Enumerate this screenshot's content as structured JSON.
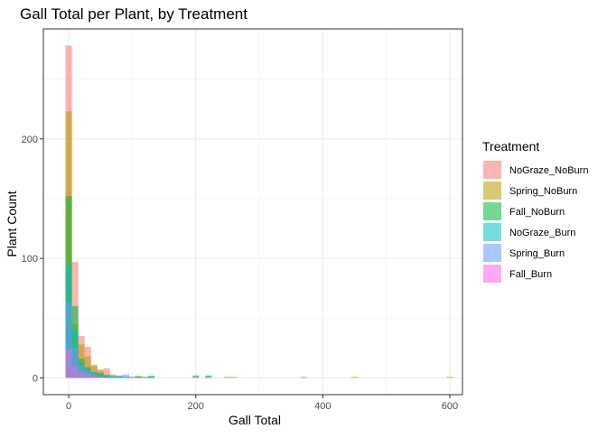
{
  "chart_data": {
    "type": "bar",
    "subtype": "overlapping histogram",
    "title": "Gall Total per Plant, by Treatment",
    "xlabel": "Gall Total",
    "ylabel": "Plant Count",
    "xlim": [
      -40,
      620
    ],
    "ylim": [
      -14,
      292
    ],
    "x_ticks": [
      0,
      200,
      400,
      600
    ],
    "y_ticks": [
      0,
      100,
      200
    ],
    "bin_width": 10,
    "grid": true,
    "legend": {
      "title": "Treatment",
      "placement": "right"
    },
    "series": [
      {
        "name": "NoGraze_NoBurn",
        "color": "#F8766D",
        "bins": [
          [
            0,
            278
          ],
          [
            10,
            97
          ],
          [
            20,
            35
          ],
          [
            30,
            26
          ],
          [
            40,
            10
          ],
          [
            50,
            7
          ],
          [
            60,
            8
          ],
          [
            70,
            3
          ],
          [
            80,
            2
          ],
          [
            90,
            1
          ],
          [
            100,
            1
          ],
          [
            110,
            2
          ],
          [
            120,
            1
          ],
          [
            130,
            1
          ],
          [
            200,
            2
          ],
          [
            220,
            2
          ],
          [
            250,
            1
          ]
        ]
      },
      {
        "name": "Spring_NoBurn",
        "color": "#B79F00",
        "bins": [
          [
            0,
            223
          ],
          [
            10,
            45
          ],
          [
            20,
            28
          ],
          [
            30,
            18
          ],
          [
            40,
            11
          ],
          [
            50,
            6
          ],
          [
            60,
            3
          ],
          [
            70,
            1
          ],
          [
            80,
            1
          ],
          [
            90,
            1
          ],
          [
            110,
            1
          ],
          [
            260,
            1
          ],
          [
            370,
            1
          ],
          [
            450,
            1
          ],
          [
            600,
            1
          ]
        ]
      },
      {
        "name": "Fall_NoBurn",
        "color": "#00BA38",
        "bins": [
          [
            0,
            152
          ],
          [
            10,
            60
          ],
          [
            20,
            16
          ],
          [
            30,
            9
          ],
          [
            40,
            5
          ],
          [
            50,
            4
          ],
          [
            60,
            2
          ],
          [
            70,
            1
          ],
          [
            80,
            1
          ],
          [
            110,
            1
          ],
          [
            130,
            1
          ]
        ]
      },
      {
        "name": "NoGraze_Burn",
        "color": "#00BFC4",
        "bins": [
          [
            0,
            95
          ],
          [
            10,
            40
          ],
          [
            20,
            13
          ],
          [
            30,
            8
          ],
          [
            40,
            4
          ],
          [
            50,
            3
          ],
          [
            60,
            2
          ],
          [
            70,
            2
          ],
          [
            80,
            2
          ],
          [
            90,
            1
          ],
          [
            100,
            1
          ],
          [
            120,
            1
          ],
          [
            130,
            2
          ],
          [
            200,
            2
          ],
          [
            220,
            2
          ]
        ]
      },
      {
        "name": "Spring_Burn",
        "color": "#619CFF",
        "bins": [
          [
            0,
            63
          ],
          [
            10,
            25
          ],
          [
            20,
            10
          ],
          [
            30,
            6
          ],
          [
            40,
            4
          ],
          [
            50,
            2
          ],
          [
            60,
            1
          ],
          [
            70,
            1
          ],
          [
            80,
            1
          ],
          [
            90,
            3
          ]
        ]
      },
      {
        "name": "Fall_Burn",
        "color": "#F564E3",
        "bins": [
          [
            0,
            24
          ],
          [
            10,
            10
          ],
          [
            20,
            5
          ],
          [
            30,
            3
          ],
          [
            40,
            2
          ],
          [
            50,
            1
          ]
        ]
      }
    ]
  }
}
